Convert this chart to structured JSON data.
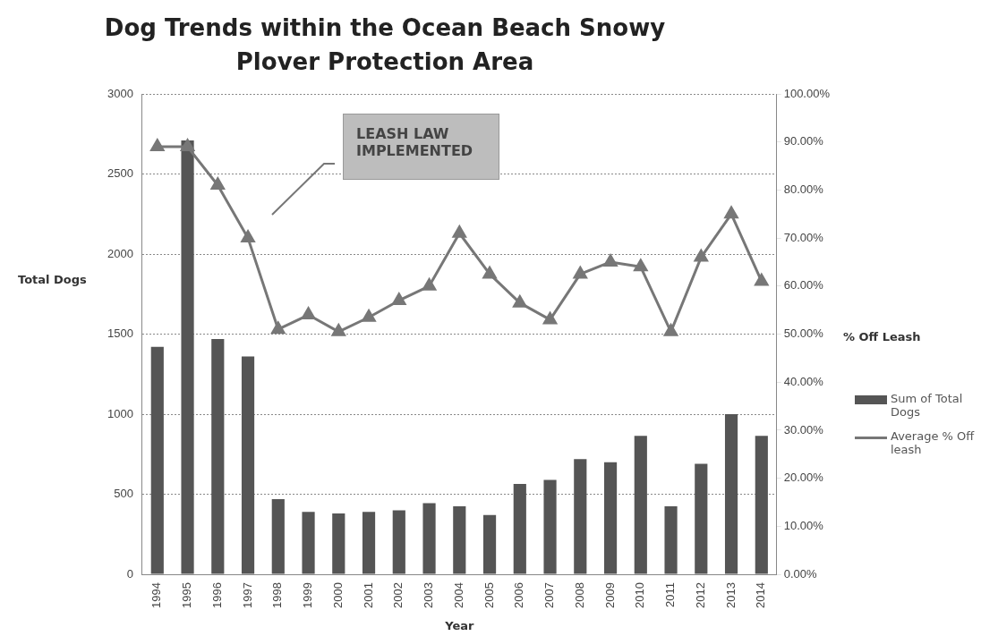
{
  "chart_data": {
    "type": "bar",
    "title": "Dog Trends within the Ocean Beach Snowy Plover Protection Area",
    "xlabel": "Year",
    "ylabel": "Total Dogs",
    "y2label": "% Off Leash",
    "categories": [
      "1994",
      "1995",
      "1996",
      "1997",
      "1998",
      "1999",
      "2000",
      "2001",
      "2002",
      "2003",
      "2004",
      "2005",
      "2006",
      "2007",
      "2008",
      "2009",
      "2010",
      "2011",
      "2012",
      "2013",
      "2014"
    ],
    "series": [
      {
        "name": "Sum of Total Dogs",
        "color": "#555555",
        "values": [
          1420,
          2710,
          1470,
          1360,
          470,
          390,
          380,
          390,
          400,
          445,
          425,
          370,
          565,
          590,
          720,
          700,
          865,
          425,
          690,
          1000,
          865
        ]
      },
      {
        "name": "Average % Off leash",
        "type": "line",
        "axis": "y2",
        "color": "#777777",
        "marker": "triangle",
        "values": [
          89,
          89,
          81,
          70,
          51,
          54,
          50.5,
          53.5,
          57,
          60,
          71,
          62.5,
          56.5,
          53,
          62.5,
          65,
          64,
          50.5,
          66,
          75,
          61
        ]
      }
    ],
    "ylim": [
      0,
      3000
    ],
    "yticks": [
      0,
      500,
      1000,
      1500,
      2000,
      2500,
      3000
    ],
    "y2lim": [
      0,
      100
    ],
    "y2ticks": [
      {
        "value": 0,
        "label": "0.00%"
      },
      {
        "value": 10,
        "label": "10.00%"
      },
      {
        "value": 20,
        "label": "20.00%"
      },
      {
        "value": 30,
        "label": "30.00%"
      },
      {
        "value": 40,
        "label": "40.00%"
      },
      {
        "value": 50,
        "label": "50.00%"
      },
      {
        "value": 60,
        "label": "60.00%"
      },
      {
        "value": 70,
        "label": "70.00%"
      },
      {
        "value": 80,
        "label": "80.00%"
      },
      {
        "value": 90,
        "label": "90.00%"
      },
      {
        "value": 100,
        "label": "100.00%"
      }
    ],
    "annotations": [
      "LEASH LAW IMPLEMENTED"
    ],
    "grid": "y",
    "legend": "right"
  }
}
